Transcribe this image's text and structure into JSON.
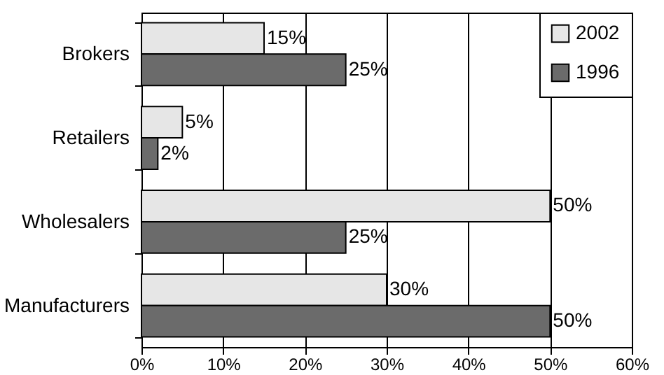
{
  "chart_data": {
    "type": "bar",
    "orientation": "horizontal",
    "categories": [
      "Brokers",
      "Retailers",
      "Wholesalers",
      "Manufacturers"
    ],
    "series": [
      {
        "name": "2002",
        "color": "#e6e6e6",
        "values": [
          15,
          5,
          50,
          30
        ],
        "value_labels": [
          "15%",
          "5%",
          "50%",
          "30%"
        ]
      },
      {
        "name": "1996",
        "color": "#6b6b6b",
        "values": [
          25,
          2,
          25,
          50
        ],
        "value_labels": [
          "25%",
          "2%",
          "25%",
          "50%"
        ]
      }
    ],
    "xlim": [
      0,
      60
    ],
    "xticks": [
      {
        "value": 0,
        "label": "0%"
      },
      {
        "value": 10,
        "label": "10%"
      },
      {
        "value": 20,
        "label": "20%"
      },
      {
        "value": 30,
        "label": "30%"
      },
      {
        "value": 40,
        "label": "40%"
      },
      {
        "value": 50,
        "label": "50%"
      },
      {
        "value": 60,
        "label": "60%"
      }
    ],
    "grid": "x",
    "legend": "top right"
  }
}
